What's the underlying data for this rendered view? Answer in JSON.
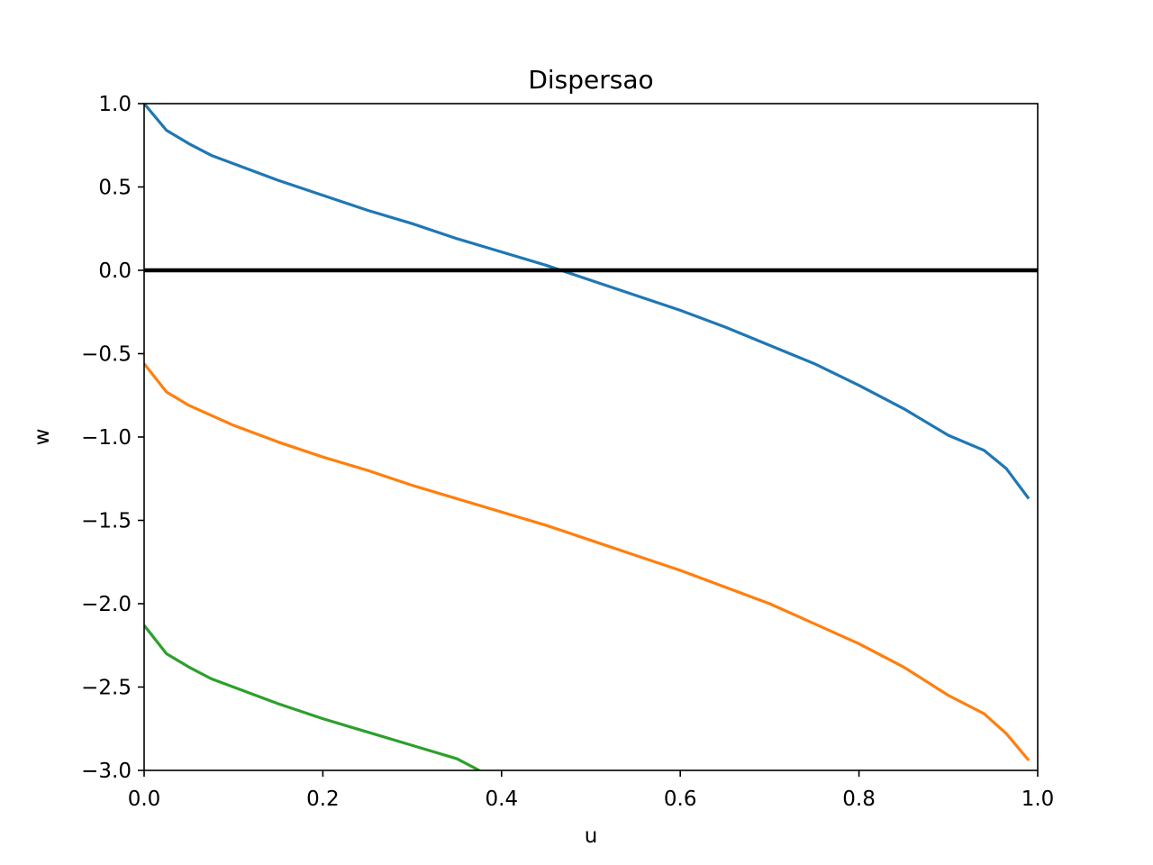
{
  "chart_data": {
    "type": "line",
    "title": "Dispersao",
    "xlabel": "u",
    "ylabel": "w",
    "xlim": [
      0.0,
      1.0
    ],
    "ylim": [
      -3.0,
      1.0
    ],
    "grid": false,
    "xticks": [
      "0.0",
      "0.2",
      "0.4",
      "0.6",
      "0.8",
      "1.0"
    ],
    "xtick_values": [
      0.0,
      0.2,
      0.4,
      0.6,
      0.8,
      1.0
    ],
    "yticks": [
      "1.0",
      "0.5",
      "0.0",
      "−0.5",
      "−1.0",
      "−1.5",
      "−2.0",
      "−2.5",
      "−3.0"
    ],
    "ytick_values": [
      1.0,
      0.5,
      0.0,
      -0.5,
      -1.0,
      -1.5,
      -2.0,
      -2.5,
      -3.0
    ],
    "reference_line": {
      "y": 0.0,
      "color": "#000000"
    },
    "series": [
      {
        "color": "#1f77b4",
        "x": [
          0.0,
          0.025,
          0.05,
          0.075,
          0.1,
          0.15,
          0.2,
          0.25,
          0.3,
          0.35,
          0.4,
          0.45,
          0.5,
          0.55,
          0.6,
          0.65,
          0.7,
          0.75,
          0.8,
          0.85,
          0.9,
          0.94,
          0.965,
          0.99
        ],
        "y": [
          1.0,
          0.84,
          0.76,
          0.69,
          0.64,
          0.54,
          0.45,
          0.36,
          0.28,
          0.19,
          0.11,
          0.03,
          -0.06,
          -0.15,
          -0.24,
          -0.34,
          -0.45,
          -0.56,
          -0.69,
          -0.83,
          -0.99,
          -1.08,
          -1.19,
          -1.37
        ]
      },
      {
        "color": "#ff7f0e",
        "x": [
          0.0,
          0.025,
          0.05,
          0.075,
          0.1,
          0.15,
          0.2,
          0.25,
          0.3,
          0.35,
          0.4,
          0.45,
          0.5,
          0.55,
          0.6,
          0.65,
          0.7,
          0.75,
          0.8,
          0.85,
          0.9,
          0.94,
          0.965,
          0.99
        ],
        "y": [
          -0.56,
          -0.73,
          -0.81,
          -0.87,
          -0.93,
          -1.03,
          -1.12,
          -1.2,
          -1.29,
          -1.37,
          -1.45,
          -1.53,
          -1.62,
          -1.71,
          -1.8,
          -1.9,
          -2.0,
          -2.12,
          -2.24,
          -2.38,
          -2.55,
          -2.66,
          -2.78,
          -2.94
        ]
      },
      {
        "color": "#2ca02c",
        "x": [
          0.0,
          0.025,
          0.05,
          0.075,
          0.1,
          0.15,
          0.2,
          0.25,
          0.3,
          0.35,
          0.375
        ],
        "y": [
          -2.13,
          -2.3,
          -2.38,
          -2.45,
          -2.5,
          -2.6,
          -2.69,
          -2.77,
          -2.85,
          -2.93,
          -3.0
        ]
      }
    ]
  }
}
